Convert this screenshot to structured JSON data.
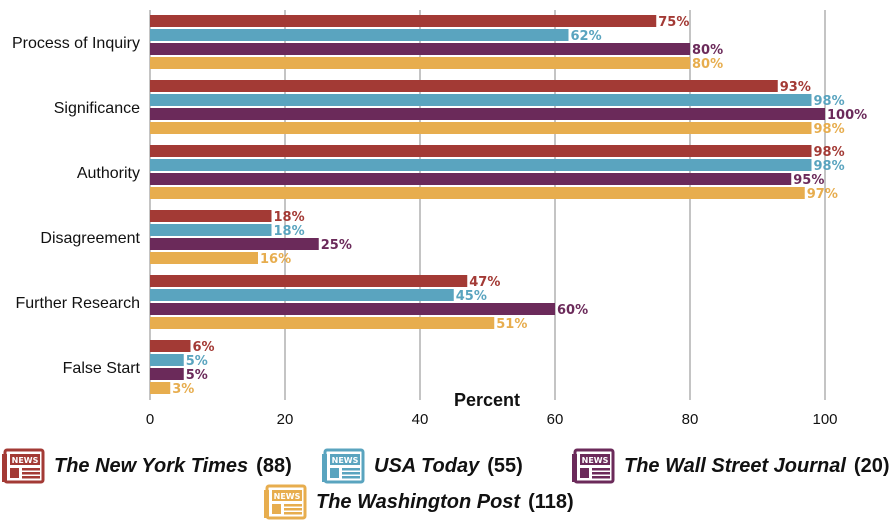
{
  "chart_data": {
    "type": "bar",
    "orientation": "horizontal",
    "categories": [
      "Process of Inquiry",
      "Significance",
      "Authority",
      "Disagreement",
      "Further Research",
      "False Start"
    ],
    "xlabel": "Percent",
    "xlim": [
      0,
      100
    ],
    "xticks": [
      0,
      20,
      40,
      60,
      80,
      100
    ],
    "grid": "vertical",
    "legend_position": "bottom",
    "series": [
      {
        "name": "The New York Times",
        "count": "(88)",
        "color": "#a33a35",
        "values": [
          75,
          93,
          98,
          18,
          47,
          6
        ],
        "labels": [
          "75%",
          "93%",
          "98%",
          "18%",
          "47%",
          "6%"
        ]
      },
      {
        "name": "USA Today",
        "count": "(55)",
        "color": "#5aa4bf",
        "values": [
          62,
          98,
          98,
          18,
          45,
          5
        ],
        "labels": [
          "62%",
          "98%",
          "98%",
          "18%",
          "45%",
          "5%"
        ]
      },
      {
        "name": "The Wall Street Journal",
        "count": "(20)",
        "color": "#6b2a5a",
        "values": [
          80,
          100,
          95,
          25,
          60,
          5
        ],
        "labels": [
          "80%",
          "100%",
          "95%",
          "25%",
          "60%",
          "5%"
        ]
      },
      {
        "name": "The Washington Post",
        "count": "(118)",
        "color": "#e7ad4e",
        "values": [
          80,
          98,
          97,
          16,
          51,
          3
        ],
        "labels": [
          "80%",
          "98%",
          "97%",
          "16%",
          "51%",
          "3%"
        ]
      }
    ]
  },
  "legend": {
    "icon": "newspaper-icon",
    "icon_text": "NEWS"
  }
}
